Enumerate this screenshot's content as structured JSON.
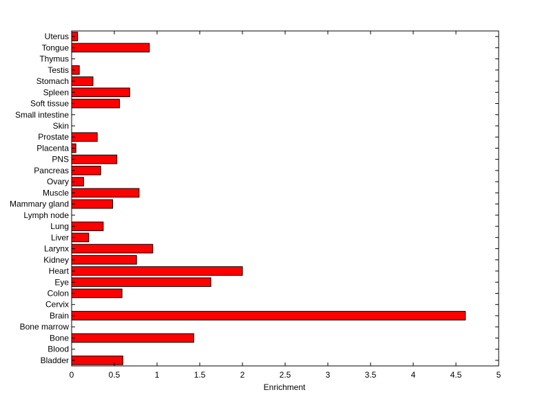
{
  "chart_data": {
    "type": "bar",
    "orientation": "horizontal",
    "title": "",
    "xlabel": "Enrichment",
    "ylabel": "",
    "xlim": [
      0,
      5
    ],
    "xticks": [
      "0",
      "0.5",
      "1",
      "1.5",
      "2",
      "2.5",
      "3",
      "3.5",
      "4",
      "4.5",
      "5"
    ],
    "grid": false,
    "bar_color": "#ff0000",
    "categories": [
      "Bladder",
      "Blood",
      "Bone",
      "Bone marrow",
      "Brain",
      "Cervix",
      "Colon",
      "Eye",
      "Heart",
      "Kidney",
      "Larynx",
      "Liver",
      "Lung",
      "Lymph node",
      "Mammary gland",
      "Muscle",
      "Ovary",
      "Pancreas",
      "PNS",
      "Placenta",
      "Prostate",
      "Skin",
      "Small intestine",
      "Soft tissue",
      "Spleen",
      "Stomach",
      "Testis",
      "Thymus",
      "Tongue",
      "Uterus"
    ],
    "values": [
      0.6,
      0,
      1.43,
      0,
      4.61,
      0,
      0.59,
      1.63,
      2.0,
      0.76,
      0.95,
      0.2,
      0.37,
      0,
      0.48,
      0.79,
      0.14,
      0.34,
      0.53,
      0.05,
      0.3,
      0,
      0,
      0.56,
      0.68,
      0.25,
      0.09,
      0,
      0.91,
      0.07
    ]
  }
}
